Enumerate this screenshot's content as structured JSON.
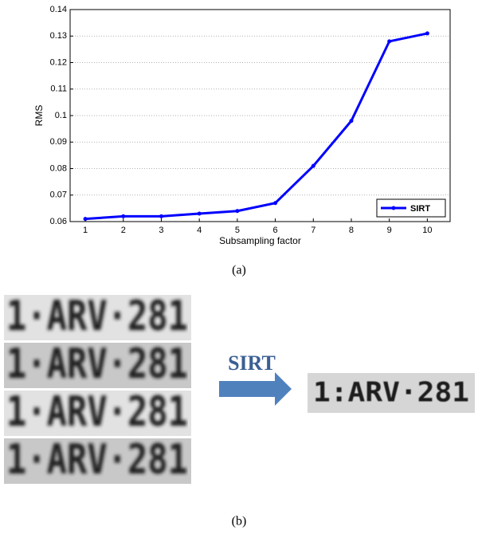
{
  "chart_data": {
    "type": "line",
    "xlabel": "Subsampling factor",
    "ylabel": "RMS",
    "x": [
      1,
      2,
      3,
      4,
      5,
      6,
      7,
      8,
      9,
      10
    ],
    "series": [
      {
        "name": "SIRT",
        "color": "#0000ff",
        "values": [
          0.061,
          0.062,
          0.062,
          0.063,
          0.064,
          0.067,
          0.081,
          0.098,
          0.128,
          0.131
        ]
      }
    ],
    "xlim": [
      0.6,
      10.6
    ],
    "ylim": [
      0.06,
      0.14
    ],
    "xticks": [
      1,
      2,
      3,
      4,
      5,
      6,
      7,
      8,
      9,
      10
    ],
    "yticks": [
      0.06,
      0.07,
      0.08,
      0.09,
      0.1,
      0.11,
      0.12,
      0.13,
      0.14
    ],
    "grid": true,
    "legend": "lower right"
  },
  "figure": {
    "caption_a": "(a)",
    "caption_b": "(b)",
    "arrow_label": "SIRT",
    "low_res_plates": [
      "1·ARV·281",
      "1·ARV·281",
      "1·ARV·281",
      "1·ARV·281"
    ],
    "reconstructed_plate": "1:ARV·281"
  }
}
